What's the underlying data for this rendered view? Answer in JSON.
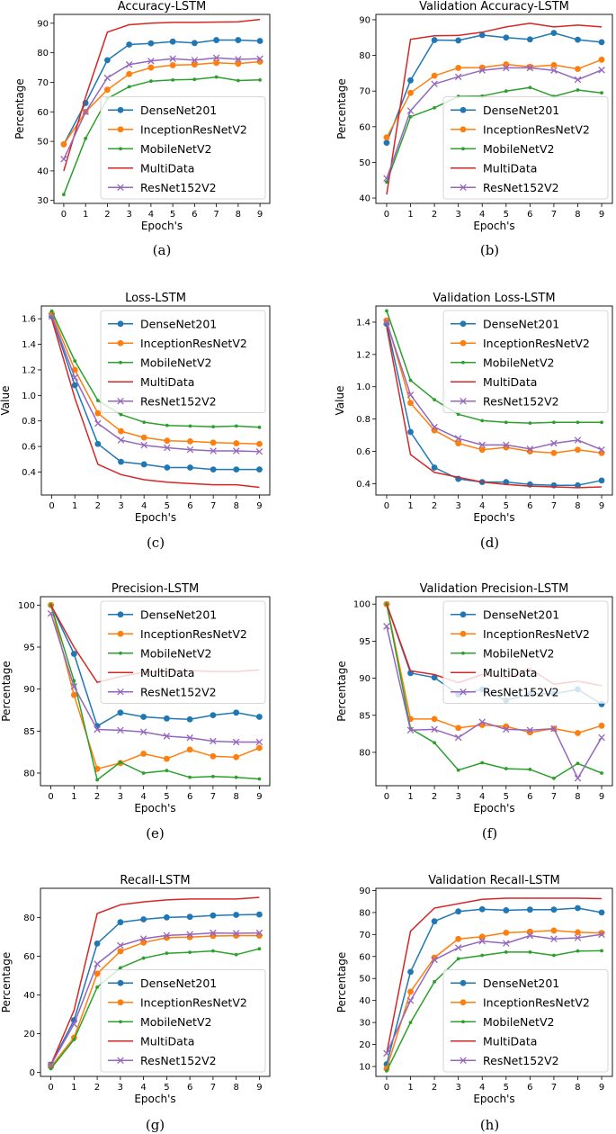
{
  "chart_data": [
    {
      "type": "line",
      "caption": "(a)",
      "title": "Accuracy-LSTM",
      "xlabel": "Epoch's",
      "ylabel": "Percentage",
      "x": [
        0,
        1,
        2,
        3,
        4,
        5,
        6,
        7,
        8,
        9
      ],
      "ylim": [
        29,
        93
      ],
      "yticks": [
        30,
        40,
        50,
        60,
        70,
        80,
        90
      ],
      "legend": "lower-right",
      "series": [
        {
          "name": "DenseNet201",
          "color": "#1f77b4",
          "marker": "o",
          "values": [
            49,
            63,
            77.5,
            82.8,
            83.2,
            83.8,
            83.3,
            84.3,
            84.3,
            84
          ]
        },
        {
          "name": "InceptionResNetV2",
          "color": "#ff7f0e",
          "marker": "o",
          "values": [
            49,
            60,
            67.5,
            72.8,
            75,
            75.8,
            76,
            76.6,
            76.3,
            77
          ]
        },
        {
          "name": "MobileNetV2",
          "color": "#2ca02c",
          "marker": ".",
          "values": [
            32,
            51,
            64.5,
            68.5,
            70.4,
            70.8,
            71,
            71.8,
            70.6,
            70.8
          ]
        },
        {
          "name": "MultiData",
          "color": "#d62728",
          "marker": "none",
          "values": [
            40,
            65,
            87,
            89.5,
            90,
            90.3,
            90.3,
            90.4,
            90.5,
            91.3
          ]
        },
        {
          "name": "ResNet152V2",
          "color": "#9467bd",
          "marker": "x",
          "values": [
            44,
            60,
            71.5,
            76,
            77.2,
            78,
            77.5,
            78.3,
            77.8,
            78
          ]
        }
      ]
    },
    {
      "type": "line",
      "caption": "(b)",
      "title": "Validation Accuracy-LSTM",
      "xlabel": "Epoch's",
      "ylabel": "Percentage",
      "x": [
        0,
        1,
        2,
        3,
        4,
        5,
        6,
        7,
        8,
        9
      ],
      "ylim": [
        38.5,
        91.5
      ],
      "yticks": [
        40,
        50,
        60,
        70,
        80,
        90
      ],
      "legend": "lower-right",
      "series": [
        {
          "name": "DenseNet201",
          "color": "#1f77b4",
          "marker": "o",
          "values": [
            55.5,
            73,
            84.3,
            84.2,
            85.7,
            85,
            84.5,
            86.3,
            84.4,
            83.7
          ]
        },
        {
          "name": "InceptionResNetV2",
          "color": "#ff7f0e",
          "marker": "o",
          "values": [
            57,
            69.5,
            74.3,
            76.5,
            76.6,
            77.5,
            76.8,
            77.3,
            76.2,
            78.8
          ]
        },
        {
          "name": "MobileNetV2",
          "color": "#2ca02c",
          "marker": ".",
          "values": [
            44.5,
            62.8,
            65.3,
            68.5,
            68.6,
            70,
            71,
            68.5,
            70.3,
            69.5
          ]
        },
        {
          "name": "MultiData",
          "color": "#d62728",
          "marker": "none",
          "values": [
            41,
            84.5,
            85.5,
            85.6,
            86.5,
            88,
            89,
            88,
            88.5,
            88
          ]
        },
        {
          "name": "ResNet152V2",
          "color": "#9467bd",
          "marker": "x",
          "values": [
            45.5,
            64.5,
            72,
            74,
            75.8,
            76.5,
            76.5,
            75.8,
            73.2,
            75.9
          ]
        }
      ]
    },
    {
      "type": "line",
      "caption": "(c)",
      "title": "Loss-LSTM",
      "xlabel": "Epoch's",
      "ylabel": "Value",
      "x": [
        0,
        1,
        2,
        3,
        4,
        5,
        6,
        7,
        8,
        9
      ],
      "ylim": [
        0.22,
        1.7
      ],
      "yticks": [
        0.4,
        0.6,
        0.8,
        1.0,
        1.2,
        1.4,
        1.6
      ],
      "legend": "upper-right",
      "series": [
        {
          "name": "DenseNet201",
          "color": "#1f77b4",
          "marker": "o",
          "values": [
            1.62,
            1.08,
            0.62,
            0.48,
            0.46,
            0.435,
            0.435,
            0.42,
            0.42,
            0.42
          ]
        },
        {
          "name": "InceptionResNetV2",
          "color": "#ff7f0e",
          "marker": "o",
          "values": [
            1.64,
            1.2,
            0.86,
            0.72,
            0.67,
            0.645,
            0.64,
            0.63,
            0.625,
            0.62
          ]
        },
        {
          "name": "MobileNetV2",
          "color": "#2ca02c",
          "marker": ".",
          "values": [
            1.66,
            1.27,
            0.96,
            0.85,
            0.79,
            0.765,
            0.76,
            0.755,
            0.76,
            0.75
          ]
        },
        {
          "name": "MultiData",
          "color": "#d62728",
          "marker": "none",
          "values": [
            1.6,
            0.98,
            0.46,
            0.38,
            0.34,
            0.32,
            0.31,
            0.3,
            0.3,
            0.28
          ]
        },
        {
          "name": "ResNet152V2",
          "color": "#9467bd",
          "marker": "x",
          "values": [
            1.62,
            1.14,
            0.78,
            0.65,
            0.61,
            0.59,
            0.575,
            0.565,
            0.565,
            0.56
          ]
        }
      ]
    },
    {
      "type": "line",
      "caption": "(d)",
      "title": "Validation Loss-LSTM",
      "xlabel": "Epoch's",
      "ylabel": "Value",
      "x": [
        0,
        1,
        2,
        3,
        4,
        5,
        6,
        7,
        8,
        9
      ],
      "ylim": [
        0.33,
        1.5
      ],
      "yticks": [
        0.4,
        0.6,
        0.8,
        1.0,
        1.2,
        1.4
      ],
      "legend": "upper-right",
      "series": [
        {
          "name": "DenseNet201",
          "color": "#1f77b4",
          "marker": "o",
          "values": [
            1.39,
            0.72,
            0.5,
            0.43,
            0.41,
            0.41,
            0.395,
            0.39,
            0.39,
            0.42
          ]
        },
        {
          "name": "InceptionResNetV2",
          "color": "#ff7f0e",
          "marker": "o",
          "values": [
            1.41,
            0.9,
            0.73,
            0.65,
            0.61,
            0.625,
            0.6,
            0.59,
            0.61,
            0.59
          ]
        },
        {
          "name": "MobileNetV2",
          "color": "#2ca02c",
          "marker": ".",
          "values": [
            1.47,
            1.04,
            0.92,
            0.83,
            0.79,
            0.78,
            0.775,
            0.78,
            0.78,
            0.78
          ]
        },
        {
          "name": "MultiData",
          "color": "#d62728",
          "marker": "none",
          "values": [
            1.37,
            0.58,
            0.47,
            0.44,
            0.41,
            0.395,
            0.385,
            0.38,
            0.375,
            0.38
          ]
        },
        {
          "name": "ResNet152V2",
          "color": "#9467bd",
          "marker": "x",
          "values": [
            1.4,
            0.95,
            0.75,
            0.68,
            0.64,
            0.64,
            0.615,
            0.65,
            0.67,
            0.61
          ]
        }
      ]
    },
    {
      "type": "line",
      "caption": "(e)",
      "title": "Precision-LSTM",
      "xlabel": "Epoch's",
      "ylabel": "Percentage",
      "x": [
        0,
        1,
        2,
        3,
        4,
        5,
        6,
        7,
        8,
        9
      ],
      "ylim": [
        78.5,
        101
      ],
      "yticks": [
        80,
        85,
        90,
        95,
        100
      ],
      "legend": "upper-right",
      "series": [
        {
          "name": "DenseNet201",
          "color": "#1f77b4",
          "marker": "o",
          "values": [
            100,
            94.2,
            85.6,
            87.2,
            86.7,
            86.5,
            86.4,
            86.9,
            87.2,
            86.7
          ]
        },
        {
          "name": "InceptionResNetV2",
          "color": "#ff7f0e",
          "marker": "o",
          "values": [
            100,
            89.3,
            80.5,
            81.2,
            82.3,
            81.7,
            82.8,
            82,
            81.9,
            83
          ]
        },
        {
          "name": "MobileNetV2",
          "color": "#2ca02c",
          "marker": ".",
          "values": [
            100,
            91,
            79.2,
            81.3,
            80,
            80.3,
            79.5,
            79.6,
            79.5,
            79.3
          ]
        },
        {
          "name": "MultiData",
          "color": "#d62728",
          "marker": "none",
          "values": [
            100,
            95,
            90.8,
            91.5,
            92,
            92.1,
            92.2,
            92.1,
            92.1,
            92.3
          ]
        },
        {
          "name": "ResNet152V2",
          "color": "#9467bd",
          "marker": "x",
          "values": [
            99,
            90.3,
            85.2,
            85.1,
            84.9,
            84.4,
            84.2,
            83.8,
            83.7,
            83.7
          ]
        }
      ]
    },
    {
      "type": "line",
      "caption": "(f)",
      "title": "Validation Precision-LSTM",
      "xlabel": "Epoch's",
      "ylabel": "Percentage",
      "x": [
        0,
        1,
        2,
        3,
        4,
        5,
        6,
        7,
        8,
        9
      ],
      "ylim": [
        75.5,
        101
      ],
      "yticks": [
        80,
        85,
        90,
        95,
        100
      ],
      "legend": "upper-right",
      "series": [
        {
          "name": "DenseNet201",
          "color": "#1f77b4",
          "marker": "o",
          "values": [
            100,
            90.7,
            90.1,
            87.8,
            88.5,
            87,
            87.9,
            87.9,
            88.5,
            86.5
          ]
        },
        {
          "name": "InceptionResNetV2",
          "color": "#ff7f0e",
          "marker": "o",
          "values": [
            100,
            84.5,
            84.5,
            83.3,
            83.7,
            83.5,
            82.7,
            83.2,
            82.6,
            83.6
          ]
        },
        {
          "name": "MobileNetV2",
          "color": "#2ca02c",
          "marker": ".",
          "values": [
            100,
            83.2,
            81.3,
            77.6,
            78.6,
            77.8,
            77.7,
            76.5,
            78.5,
            77.2
          ]
        },
        {
          "name": "MultiData",
          "color": "#d62728",
          "marker": "none",
          "values": [
            100,
            91,
            90.5,
            89.4,
            90.5,
            90.1,
            91.3,
            89.2,
            89.6,
            89
          ]
        },
        {
          "name": "ResNet152V2",
          "color": "#9467bd",
          "marker": "x",
          "values": [
            97,
            83,
            83.1,
            82,
            84.1,
            83.1,
            83,
            83.2,
            76.5,
            82
          ]
        }
      ]
    },
    {
      "type": "line",
      "caption": "(g)",
      "title": "Recall-LSTM",
      "xlabel": "Epoch's",
      "ylabel": "Percentage",
      "x": [
        0,
        1,
        2,
        3,
        4,
        5,
        6,
        7,
        8,
        9
      ],
      "ylim": [
        -2,
        95
      ],
      "yticks": [
        0,
        20,
        40,
        60,
        80
      ],
      "legend": "lower-right",
      "series": [
        {
          "name": "DenseNet201",
          "color": "#1f77b4",
          "marker": "o",
          "values": [
            4,
            27,
            66.5,
            77.5,
            79,
            80,
            80.3,
            81,
            81.3,
            81.5
          ]
        },
        {
          "name": "InceptionResNetV2",
          "color": "#ff7f0e",
          "marker": "o",
          "values": [
            3,
            18,
            51,
            62.5,
            67,
            69.5,
            69.8,
            70.4,
            70.6,
            70.6
          ]
        },
        {
          "name": "MobileNetV2",
          "color": "#2ca02c",
          "marker": ".",
          "values": [
            2,
            17,
            44,
            54,
            59,
            61.5,
            62,
            62.7,
            60.8,
            63.8
          ]
        },
        {
          "name": "MultiData",
          "color": "#d62728",
          "marker": "none",
          "values": [
            4,
            32,
            82,
            86.5,
            88,
            89,
            89.5,
            89.5,
            89.5,
            90.3
          ]
        },
        {
          "name": "ResNet152V2",
          "color": "#9467bd",
          "marker": "x",
          "values": [
            4,
            25,
            56,
            65.5,
            69,
            70.7,
            71.2,
            72,
            71.8,
            72
          ]
        }
      ]
    },
    {
      "type": "line",
      "caption": "(h)",
      "title": "Validation Recall-LSTM",
      "xlabel": "Epoch's",
      "ylabel": "Percentage",
      "x": [
        0,
        1,
        2,
        3,
        4,
        5,
        6,
        7,
        8,
        9
      ],
      "ylim": [
        5.5,
        91
      ],
      "yticks": [
        10,
        20,
        30,
        40,
        50,
        60,
        70,
        80,
        90
      ],
      "legend": "lower-right",
      "series": [
        {
          "name": "DenseNet201",
          "color": "#1f77b4",
          "marker": "o",
          "values": [
            11,
            53,
            76,
            80.5,
            81.5,
            81,
            81.3,
            81.3,
            82,
            80
          ]
        },
        {
          "name": "InceptionResNetV2",
          "color": "#ff7f0e",
          "marker": "o",
          "values": [
            9,
            44,
            59.5,
            68,
            69,
            70.8,
            71.3,
            71.8,
            71,
            70.7
          ]
        },
        {
          "name": "MobileNetV2",
          "color": "#2ca02c",
          "marker": ".",
          "values": [
            8,
            30,
            48.5,
            59,
            60.5,
            62,
            62,
            60.5,
            62.5,
            62.6
          ]
        },
        {
          "name": "MultiData",
          "color": "#d62728",
          "marker": "none",
          "values": [
            16,
            71.5,
            82,
            84,
            86,
            86.5,
            86.5,
            86.5,
            86.5,
            86.3
          ]
        },
        {
          "name": "ResNet152V2",
          "color": "#9467bd",
          "marker": "x",
          "values": [
            16,
            40,
            58.5,
            64,
            67,
            66,
            69.5,
            68,
            68.5,
            70
          ]
        }
      ]
    }
  ]
}
